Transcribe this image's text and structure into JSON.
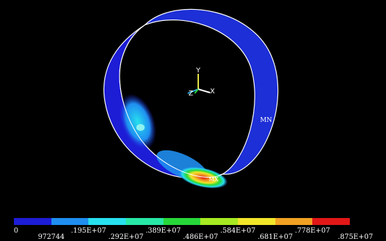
{
  "model": {
    "max_marker": "MX",
    "min_marker": "MN",
    "axes": {
      "x": "X",
      "y": "Y",
      "z": "Z"
    }
  },
  "legend": {
    "colors": [
      "#1d1dd6",
      "#1f8ef0",
      "#27e0ee",
      "#28e8a6",
      "#27d83a",
      "#a7ea23",
      "#f1e629",
      "#f2a223",
      "#e21717"
    ],
    "ticks": [
      {
        "text": "0",
        "row": "upper"
      },
      {
        "text": "972744",
        "row": "lower"
      },
      {
        "text": ".195E+07",
        "row": "upper"
      },
      {
        "text": ".292E+07",
        "row": "lower"
      },
      {
        "text": ".389E+07",
        "row": "upper"
      },
      {
        "text": ".486E+07",
        "row": "lower"
      },
      {
        "text": ".584E+07",
        "row": "upper"
      },
      {
        "text": ".681E+07",
        "row": "lower"
      },
      {
        "text": ".778E+07",
        "row": "upper"
      },
      {
        "text": ".875E+07",
        "row": "lower"
      }
    ]
  }
}
